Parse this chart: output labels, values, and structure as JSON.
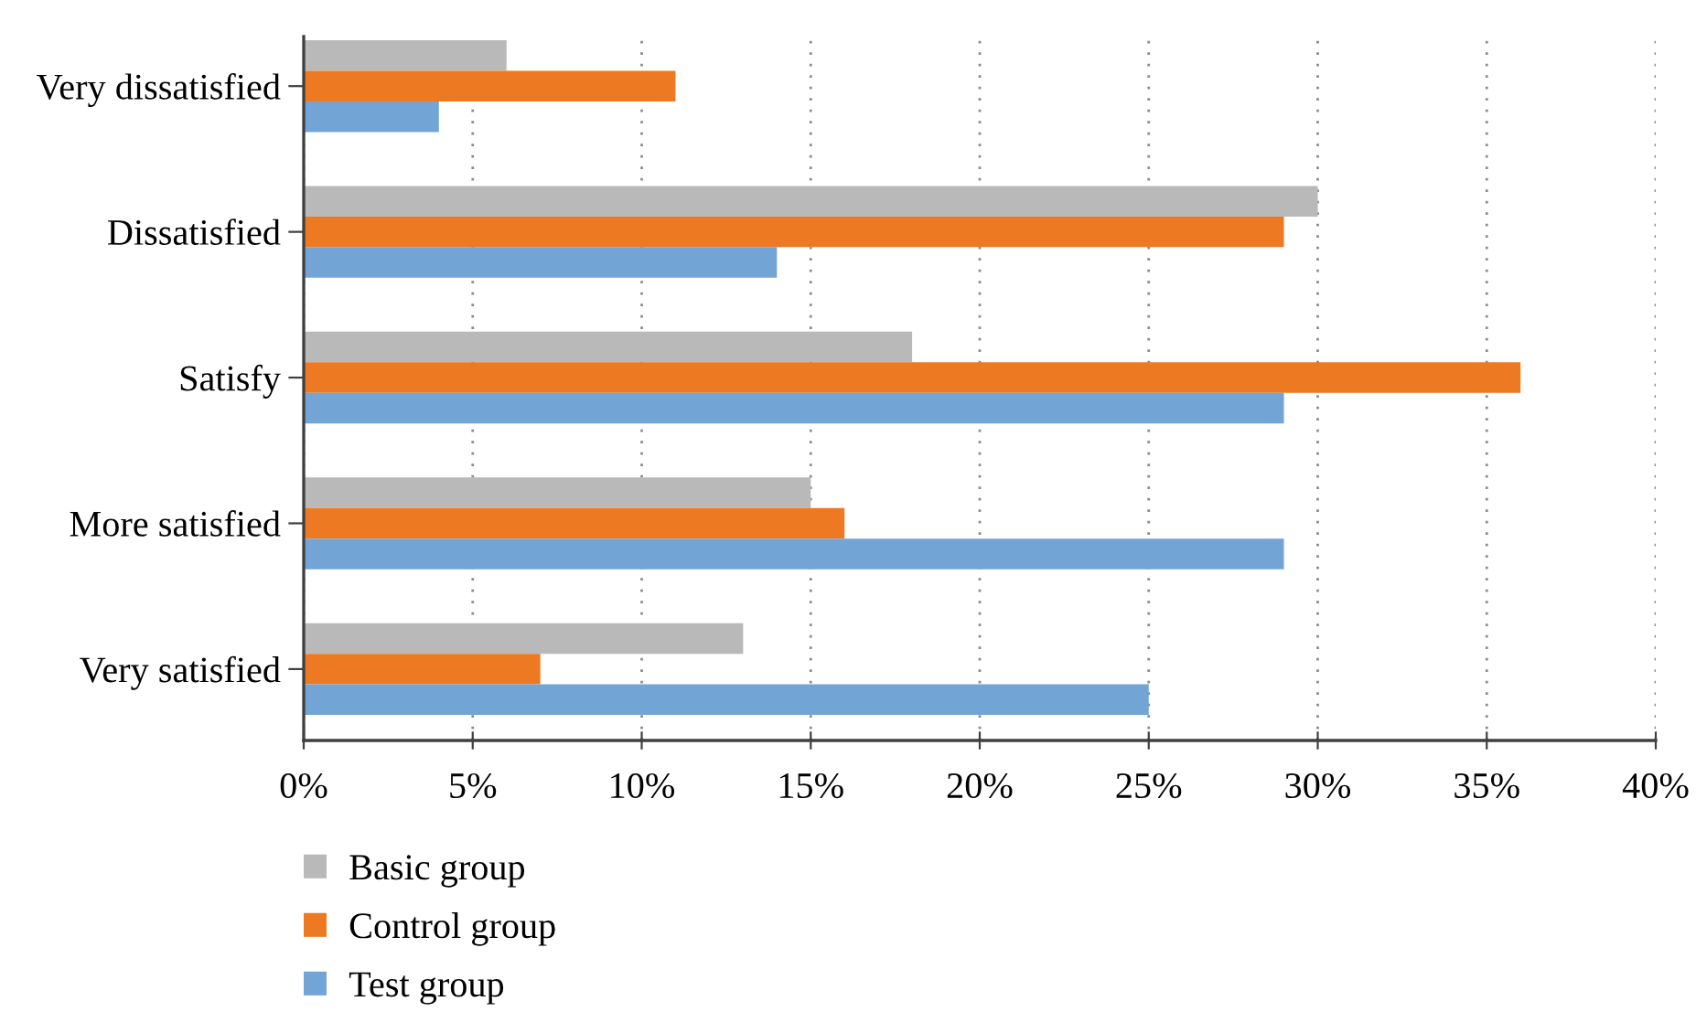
{
  "chart_data": {
    "type": "bar",
    "orientation": "horizontal",
    "categories": [
      "Very dissatisfied",
      "Dissatisfied",
      "Satisfy",
      "More satisfied",
      "Very satisfied"
    ],
    "series": [
      {
        "name": "Basic group",
        "color": "#b9b9b9",
        "values": [
          6,
          30,
          18,
          15,
          13
        ]
      },
      {
        "name": "Control group",
        "color": "#ed7a22",
        "values": [
          11,
          29,
          36,
          16,
          7
        ]
      },
      {
        "name": "Test group",
        "color": "#72a5d5",
        "values": [
          4,
          14,
          29,
          29,
          25
        ]
      }
    ],
    "xlim": [
      0,
      40
    ],
    "xticks": [
      {
        "value": 0,
        "label": "0%"
      },
      {
        "value": 5,
        "label": "5%"
      },
      {
        "value": 10,
        "label": "10%"
      },
      {
        "value": 15,
        "label": "15%"
      },
      {
        "value": 20,
        "label": "20%"
      },
      {
        "value": 25,
        "label": "25%"
      },
      {
        "value": 30,
        "label": "30%"
      },
      {
        "value": 35,
        "label": "35%"
      },
      {
        "value": 40,
        "label": "40%"
      }
    ],
    "grid": "x",
    "legend": "bottom left"
  }
}
